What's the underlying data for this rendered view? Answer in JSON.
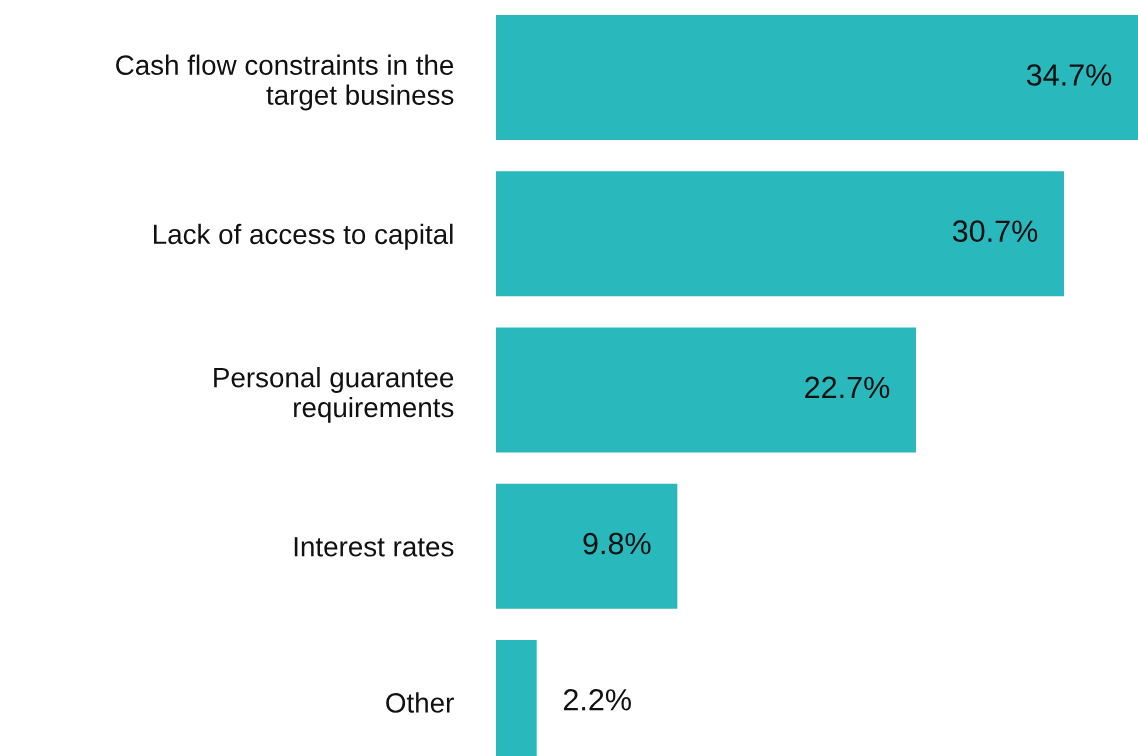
{
  "chart_data": {
    "type": "bar",
    "orientation": "horizontal",
    "categories": [
      "Cash flow constraints in the\ntarget business",
      "Lack of access to capital",
      "Personal guarantee\nrequirements",
      "Interest rates",
      "Other"
    ],
    "values": [
      34.7,
      30.7,
      22.7,
      9.8,
      2.2
    ],
    "value_labels": [
      "34.7%",
      "30.7%",
      "22.7%",
      "9.8%",
      "2.2%"
    ],
    "color": "#29b9bd",
    "grid": false,
    "legend": false
  }
}
